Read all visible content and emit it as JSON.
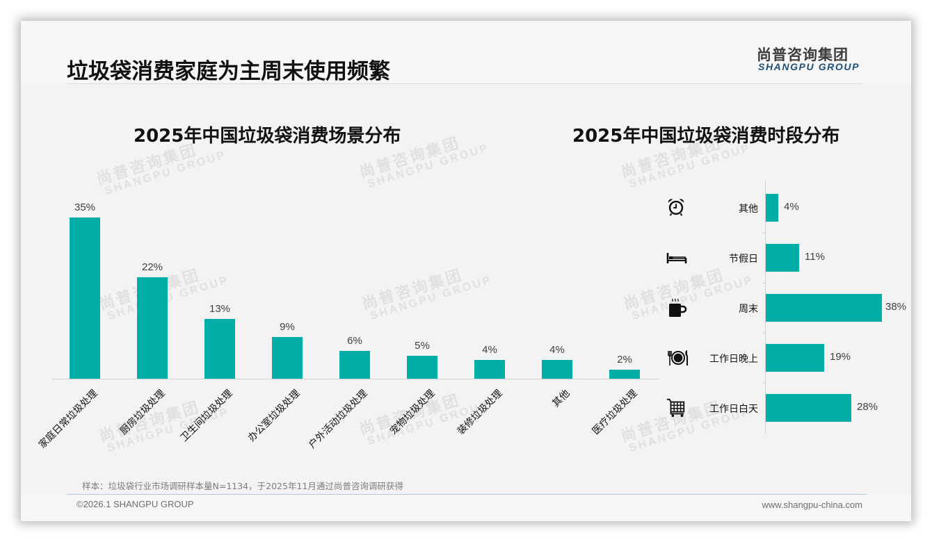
{
  "header": {
    "title": "垃圾袋消费家庭为主周末使用频繁",
    "logo_cn": "尚普咨询集团",
    "logo_en": "SHANGPU GROUP"
  },
  "watermark": {
    "cn": "尚普咨询集团",
    "en": "SHANGPU GROUP"
  },
  "colors": {
    "bar": "#00ada6",
    "logo_en": "#1c4f78",
    "background": "#f3f3f3"
  },
  "chart_data": [
    {
      "type": "bar",
      "title": "2025年中国垃圾袋消费场景分布",
      "categories": [
        "家庭日常垃圾处理",
        "厨房垃圾处理",
        "卫生间垃圾处理",
        "办公室垃圾处理",
        "户外活动垃圾处理",
        "宠物垃圾处理",
        "装修垃圾处理",
        "其他",
        "医疗垃圾处理"
      ],
      "values": [
        35,
        22,
        13,
        9,
        6,
        5,
        4,
        4,
        2
      ],
      "value_labels": [
        "35%",
        "22%",
        "13%",
        "9%",
        "6%",
        "5%",
        "4%",
        "4%",
        "2%"
      ],
      "xlabel": "",
      "ylabel": "",
      "ylim": [
        0,
        35
      ],
      "grid": false,
      "legend": "none",
      "x_label_rotation": -45
    },
    {
      "type": "bar",
      "orientation": "horizontal",
      "title": "2025年中国垃圾袋消费时段分布",
      "categories": [
        "其他",
        "节假日",
        "周末",
        "工作日晚上",
        "工作日白天"
      ],
      "values": [
        4,
        11,
        38,
        19,
        28
      ],
      "value_labels": [
        "4%",
        "11%",
        "38%",
        "19%",
        "28%"
      ],
      "icons": [
        "alarm-clock-icon",
        "bed-icon",
        "coffee-cup-icon",
        "plate-cutlery-icon",
        "shopping-cart-icon"
      ],
      "xlabel": "",
      "ylabel": "",
      "xlim": [
        0,
        38
      ],
      "grid": false,
      "legend": "none"
    }
  ],
  "footer": {
    "note": "样本：垃圾袋行业市场调研样本量N=1134，于2025年11月通过尚普咨询调研获得",
    "copyright": "©2026.1 SHANGPU GROUP",
    "website": "www.shangpu-china.com"
  }
}
